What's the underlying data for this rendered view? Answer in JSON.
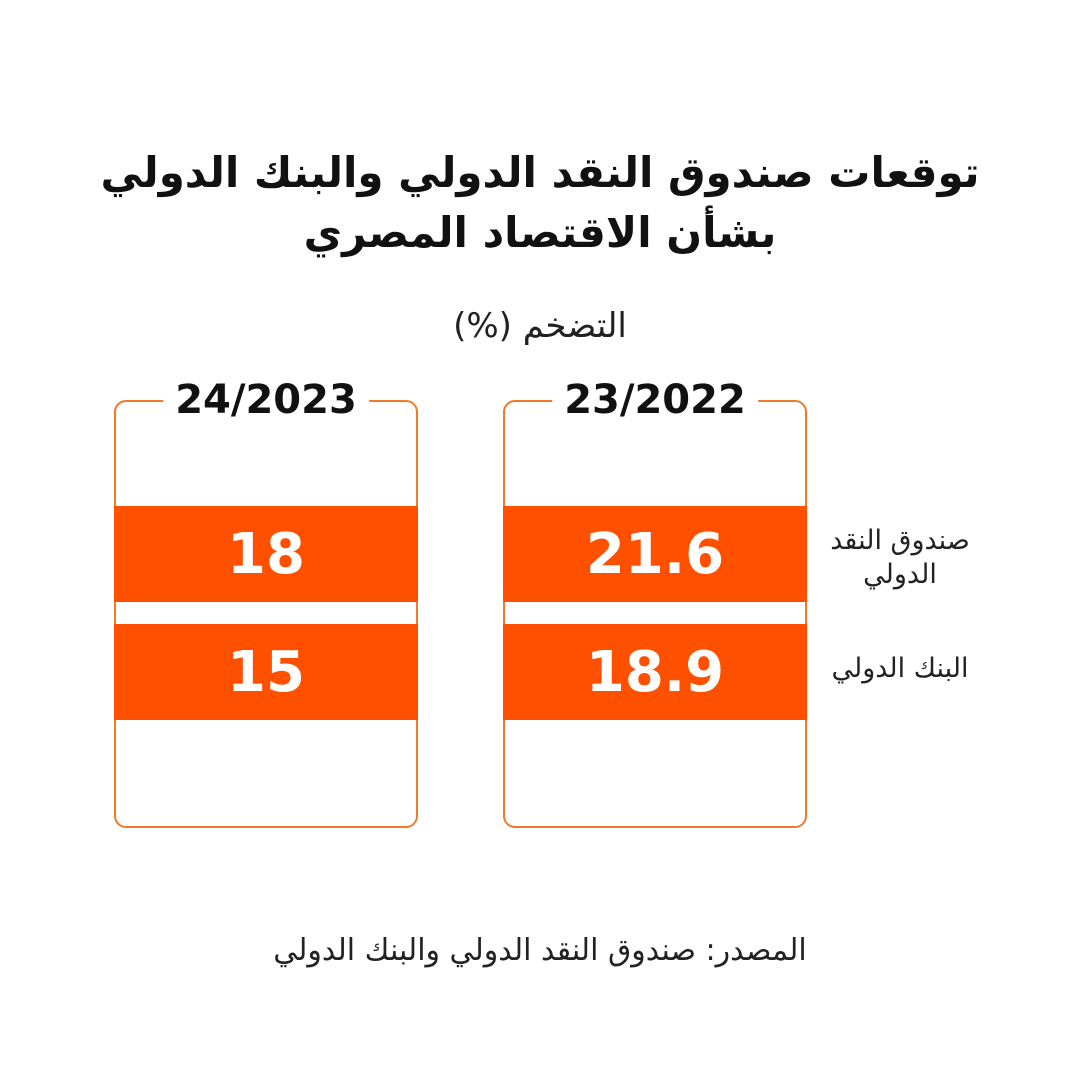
{
  "title_lines": [
    "توقعات صندوق النقد الدولي والبنك الدولي",
    "بشأن الاقتصاد المصري"
  ],
  "subtitle": "التضخم (%)",
  "row_labels": {
    "imf": "صندوق النقد الدولي",
    "wb": "البنك الدولي"
  },
  "source": "المصدر: صندوق النقد الدولي والبنك الدولي",
  "colors": {
    "accent": "#ff5000",
    "frame": "#f07a2a"
  },
  "chart_data": {
    "type": "table",
    "title": "توقعات صندوق النقد الدولي والبنك الدولي بشأن الاقتصاد المصري",
    "subtitle": "التضخم (%)",
    "categories": [
      "23/2022",
      "24/2023"
    ],
    "series": [
      {
        "name": "صندوق النقد الدولي",
        "values": [
          21.6,
          18
        ]
      },
      {
        "name": "البنك الدولي",
        "values": [
          18.9,
          15
        ]
      }
    ]
  }
}
